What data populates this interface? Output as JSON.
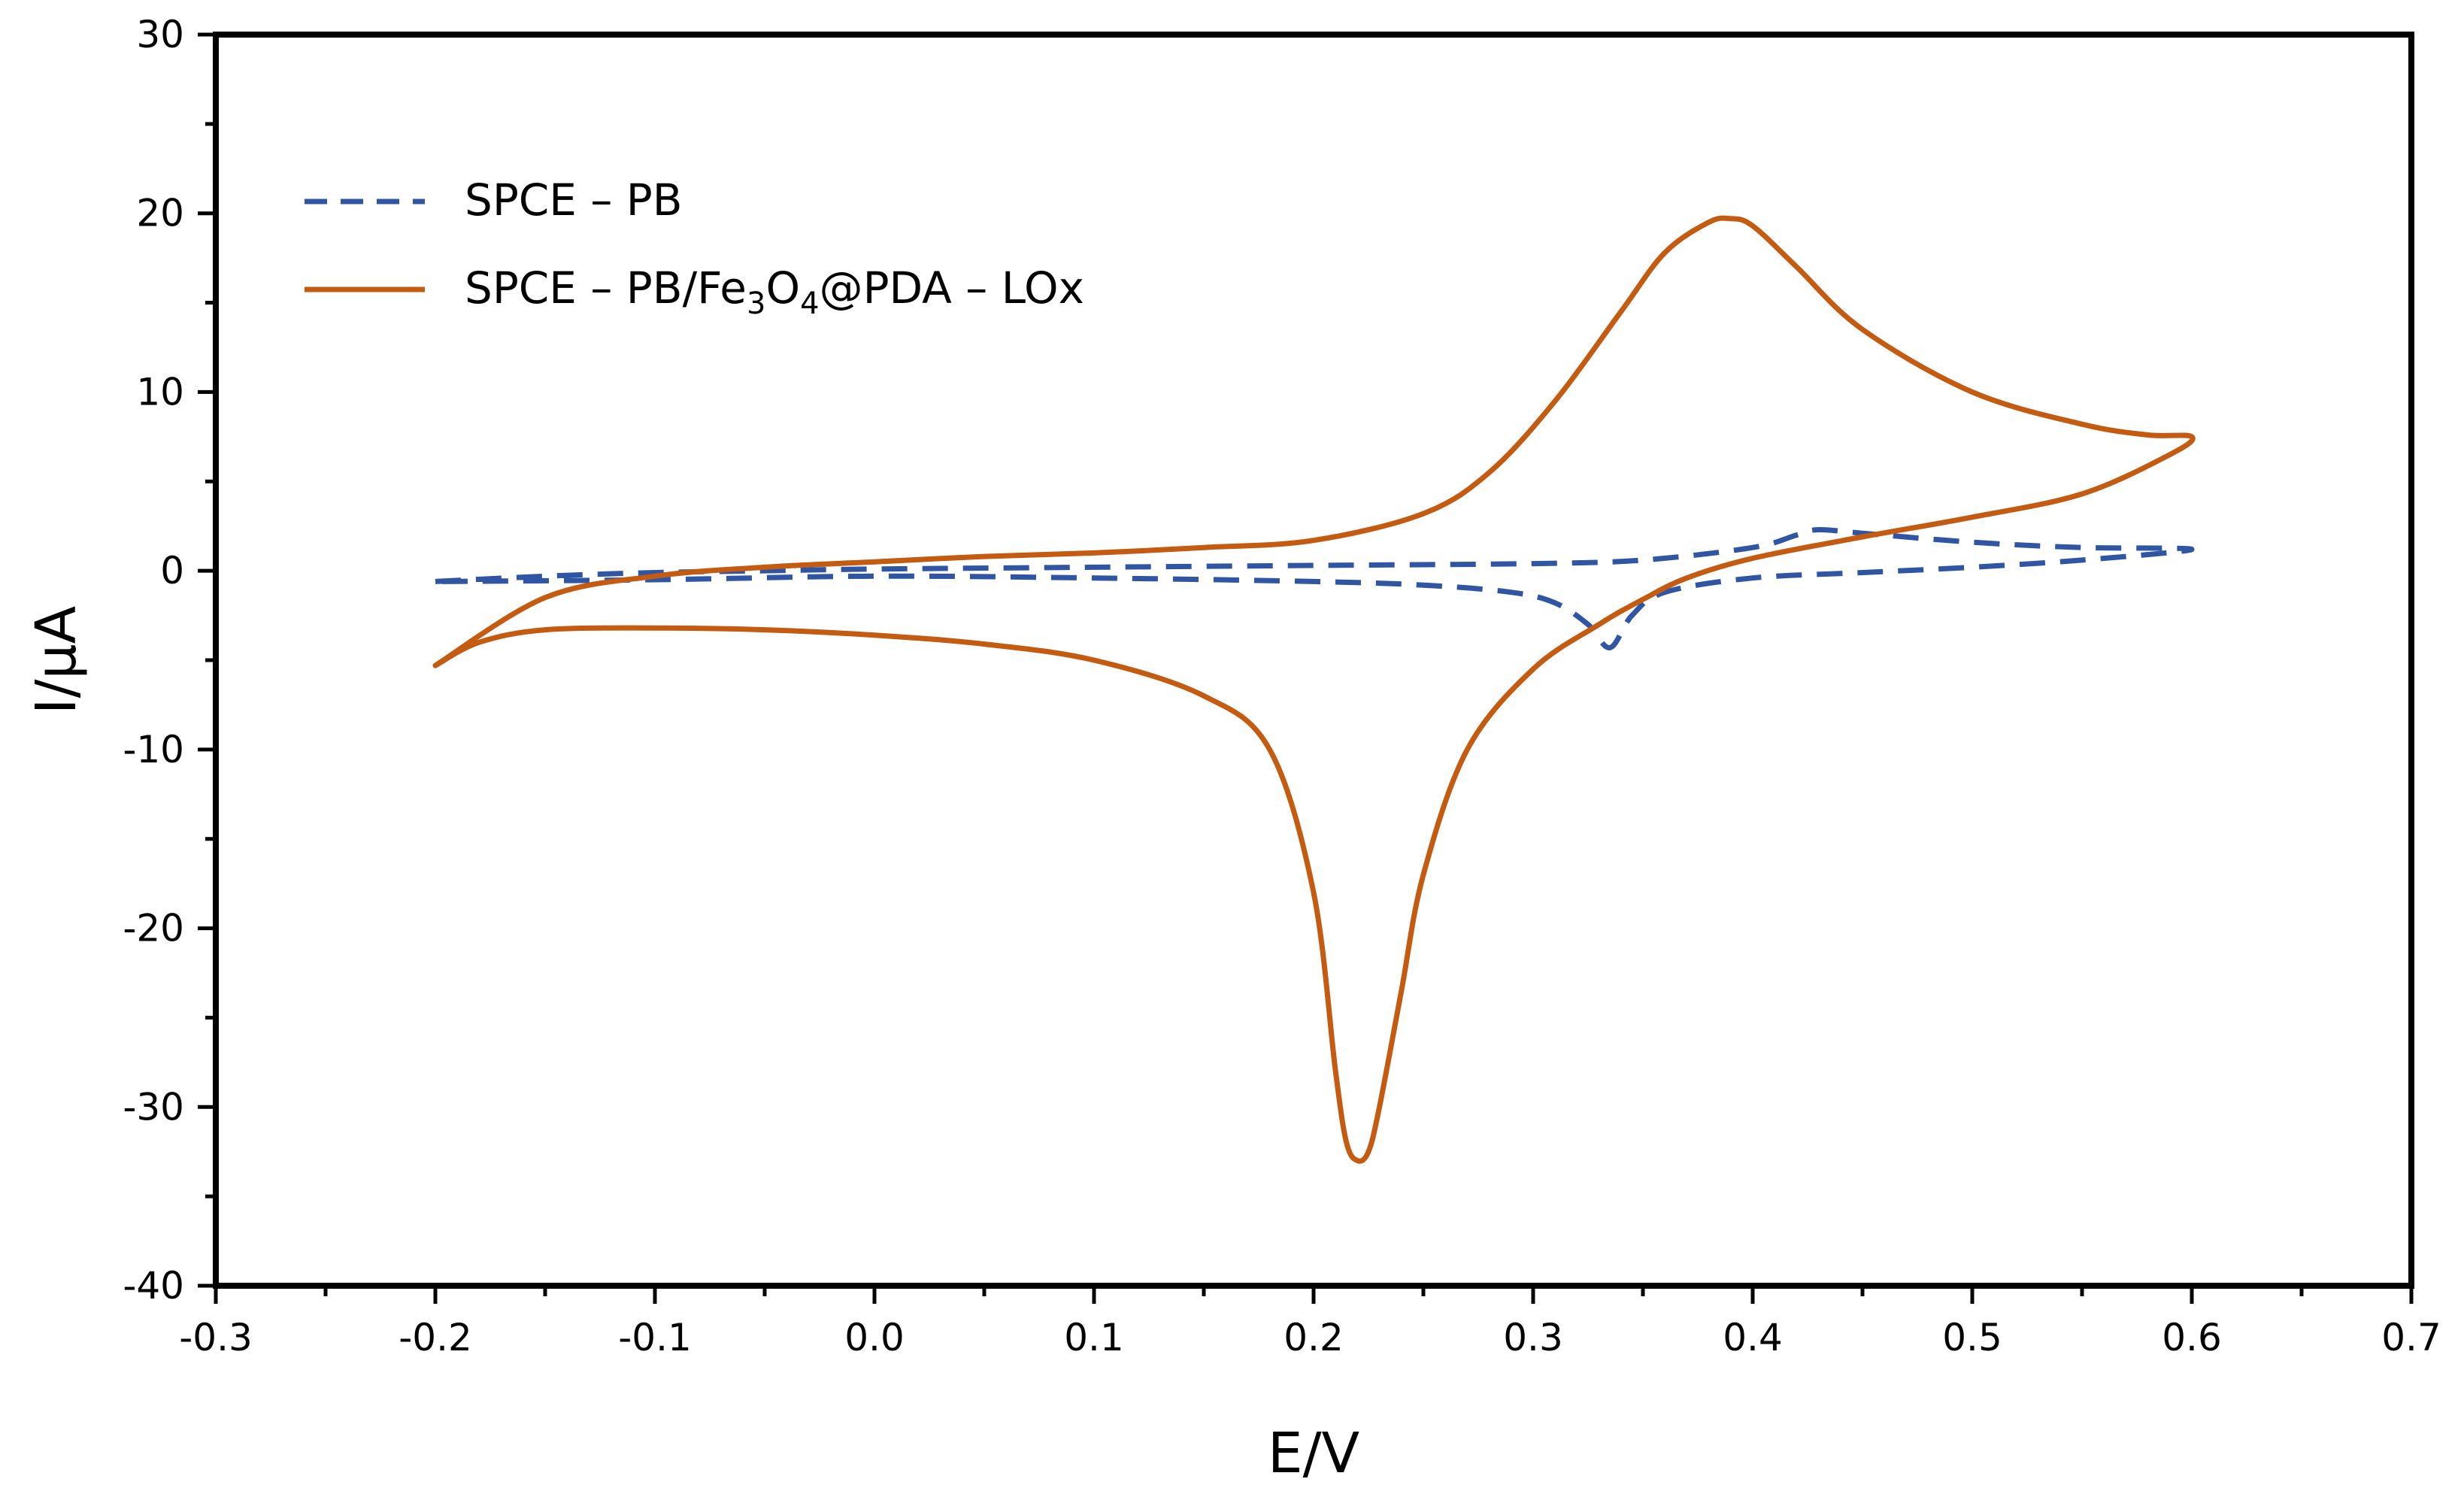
{
  "chart_data": {
    "type": "line",
    "title": "",
    "xlabel": "E/V",
    "ylabel": "I/μA",
    "xlim": [
      -0.3,
      0.7
    ],
    "ylim": [
      -40,
      30
    ],
    "x_ticks": [
      -0.3,
      -0.2,
      -0.1,
      0.0,
      0.1,
      0.2,
      0.3,
      0.4,
      0.5,
      0.6,
      0.7
    ],
    "x_tick_labels": [
      "-0.3",
      "-0.2",
      "-0.1",
      "0.0",
      "0.1",
      "0.2",
      "0.3",
      "0.4",
      "0.5",
      "0.6",
      "0.7"
    ],
    "y_ticks": [
      -40,
      -30,
      -20,
      -10,
      0,
      10,
      20,
      30
    ],
    "y_tick_labels": [
      "-40",
      "-30",
      "-20",
      "-10",
      "0",
      "10",
      "20",
      "30"
    ],
    "grid": false,
    "legend_position": "top-left",
    "series": [
      {
        "name": "SPCE – PB",
        "legend_parts": [
          "SPCE – PB"
        ],
        "color": "#2F55A4",
        "style": "dashed",
        "x": [
          -0.2,
          -0.15,
          -0.1,
          -0.05,
          0.0,
          0.1,
          0.2,
          0.3,
          0.35,
          0.4,
          0.42,
          0.43,
          0.45,
          0.5,
          0.55,
          0.6,
          0.55,
          0.5,
          0.45,
          0.4,
          0.36,
          0.345,
          0.335,
          0.325,
          0.31,
          0.29,
          0.25,
          0.2,
          0.1,
          0.0,
          -0.1,
          -0.2
        ],
        "y": [
          -0.6,
          -0.3,
          -0.1,
          0.0,
          0.1,
          0.2,
          0.3,
          0.4,
          0.6,
          1.3,
          2.0,
          2.3,
          2.1,
          1.6,
          1.3,
          1.2,
          0.6,
          0.2,
          -0.1,
          -0.4,
          -1.2,
          -2.5,
          -4.3,
          -3.0,
          -1.8,
          -1.2,
          -0.8,
          -0.6,
          -0.4,
          -0.3,
          -0.5,
          -0.6
        ]
      },
      {
        "name": "SPCE – PB/Fe3O4@PDA – LOx",
        "legend_parts": [
          "SPCE – PB/Fe",
          "3",
          "O",
          "4",
          "@PDA – LOx"
        ],
        "color": "#C55A11",
        "style": "solid",
        "x": [
          -0.2,
          -0.15,
          -0.1,
          -0.05,
          0.0,
          0.05,
          0.1,
          0.15,
          0.2,
          0.25,
          0.28,
          0.31,
          0.34,
          0.36,
          0.38,
          0.39,
          0.4,
          0.42,
          0.45,
          0.5,
          0.55,
          0.58,
          0.6,
          0.59,
          0.55,
          0.5,
          0.45,
          0.4,
          0.37,
          0.35,
          0.33,
          0.3,
          0.27,
          0.25,
          0.24,
          0.23,
          0.225,
          0.22,
          0.215,
          0.21,
          0.2,
          0.18,
          0.15,
          0.1,
          0.05,
          0.0,
          -0.05,
          -0.1,
          -0.15,
          -0.18,
          -0.2
        ],
        "y": [
          -5.3,
          -1.5,
          -0.3,
          0.2,
          0.5,
          0.8,
          1.0,
          1.3,
          1.7,
          3.2,
          5.5,
          9.5,
          14.5,
          17.8,
          19.5,
          19.7,
          19.3,
          17.0,
          13.5,
          10.0,
          8.2,
          7.6,
          7.5,
          6.5,
          4.3,
          3.0,
          1.9,
          0.7,
          -0.4,
          -1.6,
          -3.0,
          -5.5,
          -10.0,
          -17.0,
          -23.5,
          -30.0,
          -32.5,
          -33.0,
          -32.0,
          -28.0,
          -18.0,
          -10.0,
          -7.0,
          -5.0,
          -4.1,
          -3.6,
          -3.3,
          -3.2,
          -3.3,
          -4.0,
          -5.3
        ]
      }
    ]
  }
}
